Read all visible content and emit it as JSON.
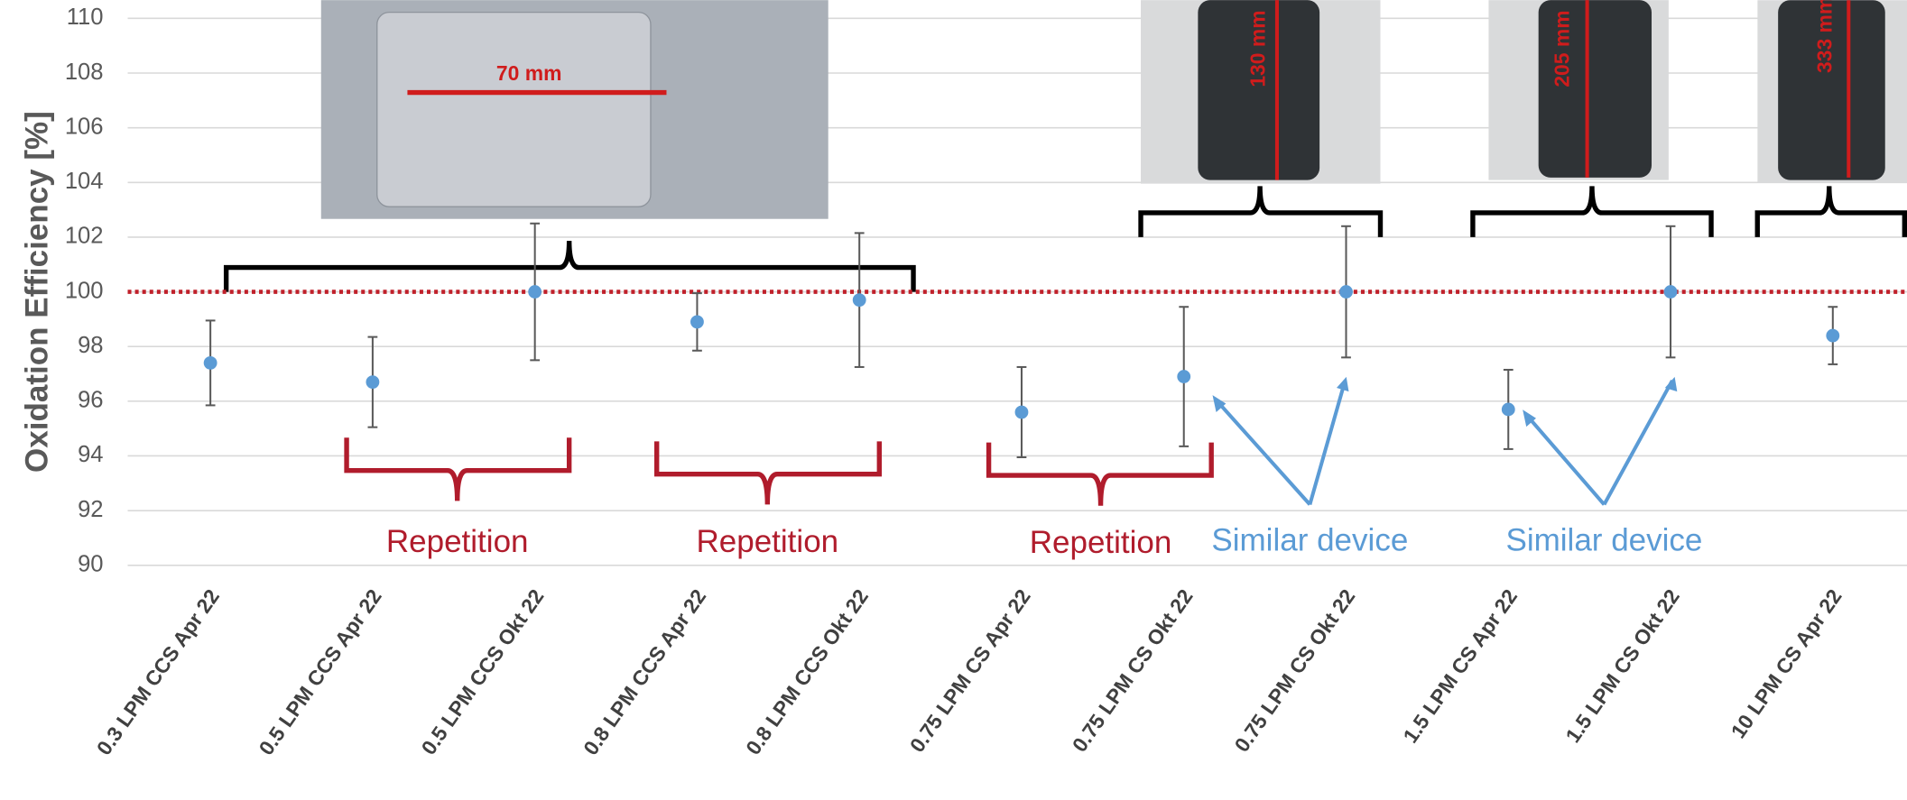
{
  "chart_data": {
    "type": "scatter",
    "y_label": "Oxidation Efficiency [%]",
    "categories": [
      "0.3 LPM CCS Apr 22",
      "0.5 LPM CCS Apr 22",
      "0.5 LPM CCS Okt 22",
      "0.8 LPM CCS Apr 22",
      "0.8 LPM CCS Okt 22",
      "0.75 LPM CS Apr 22",
      "0.75 LPM CS Okt 22",
      "0.75 LPM CS Okt 22",
      "1.5 LPM CS Apr 22",
      "1.5 LPM CS Okt 22",
      "10 LPM CS Apr 22"
    ],
    "series": [
      {
        "color": "#5b9bd5",
        "values": [
          97.4,
          96.7,
          100,
          98.9,
          99.7,
          95.6,
          96.9,
          100,
          95.7,
          100,
          98.4
        ],
        "errors": [
          1.55,
          1.65,
          2.5,
          1.05,
          2.45,
          1.65,
          2.55,
          2.4,
          1.45,
          2.4,
          1.05
        ]
      }
    ],
    "ylim": [
      90,
      110
    ],
    "yticks": [
      90,
      92,
      94,
      96,
      98,
      100,
      102,
      104,
      106,
      108,
      110
    ],
    "grid": true,
    "reference_line": 100,
    "reference_color": "#c0202a",
    "annotations": [
      "Repetition",
      "Repetition",
      "Repetition",
      "Similar device",
      "Similar device"
    ],
    "photo_labels": [
      "70 mm",
      "130 mm",
      "205 mm",
      "333 mm"
    ]
  }
}
